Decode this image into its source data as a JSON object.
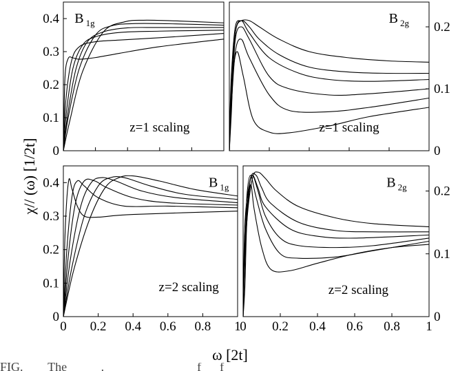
{
  "figure": {
    "ylabel": "χ// (ω) [1/2t]",
    "xlabel": "ω [2t]",
    "caption_fragment": "FIG.        The           .                              f      f"
  },
  "chart_data": [
    {
      "type": "line",
      "panel": "top-left",
      "label_main": "B",
      "label_sub": "1g",
      "annotation": "z=1 scaling",
      "y_axis_side": "left",
      "xlim": [
        0,
        1
      ],
      "ylim": [
        0,
        0.45
      ],
      "xticks": [],
      "yticks": [
        0,
        0.1,
        0.2,
        0.3,
        0.4
      ],
      "ytick_labels": [
        "0",
        "0.1",
        "0.2",
        "0.3",
        "0.4"
      ],
      "series": [
        {
          "x": [
            0,
            0.01,
            0.03,
            0.06,
            0.1,
            0.2,
            0.35,
            0.6,
            1.0
          ],
          "y": [
            0,
            0.22,
            0.279,
            0.281,
            0.277,
            0.282,
            0.295,
            0.315,
            0.338
          ]
        },
        {
          "x": [
            0,
            0.015,
            0.05,
            0.1,
            0.2,
            0.35,
            0.6,
            1.0
          ],
          "y": [
            0,
            0.15,
            0.27,
            0.315,
            0.33,
            0.335,
            0.342,
            0.355
          ]
        },
        {
          "x": [
            0,
            0.02,
            0.06,
            0.12,
            0.2,
            0.35,
            0.6,
            1.0
          ],
          "y": [
            0,
            0.12,
            0.25,
            0.32,
            0.345,
            0.358,
            0.362,
            0.365
          ]
        },
        {
          "x": [
            0,
            0.03,
            0.08,
            0.15,
            0.25,
            0.4,
            0.6,
            1.0
          ],
          "y": [
            0,
            0.12,
            0.25,
            0.33,
            0.36,
            0.372,
            0.373,
            0.373
          ]
        },
        {
          "x": [
            0,
            0.03,
            0.1,
            0.2,
            0.3,
            0.45,
            0.7,
            1.0
          ],
          "y": [
            0,
            0.1,
            0.25,
            0.35,
            0.378,
            0.385,
            0.384,
            0.38
          ]
        },
        {
          "x": [
            0,
            0.04,
            0.12,
            0.25,
            0.38,
            0.5,
            0.7,
            1.0
          ],
          "y": [
            0,
            0.09,
            0.24,
            0.36,
            0.39,
            0.395,
            0.393,
            0.387
          ]
        }
      ]
    },
    {
      "type": "line",
      "panel": "top-right",
      "label_main": "B",
      "label_sub": "2g",
      "annotation": "z=1 scaling",
      "y_axis_side": "right",
      "xlim": [
        0,
        1
      ],
      "ylim": [
        0,
        0.24
      ],
      "xticks": [],
      "yticks": [
        0,
        0.1,
        0.2
      ],
      "ytick_labels": [
        "0",
        "0.1",
        "0.2"
      ],
      "series": [
        {
          "x": [
            0,
            0.01,
            0.03,
            0.06,
            0.1,
            0.15,
            0.25,
            0.4,
            0.6,
            0.8,
            1.0
          ],
          "y": [
            0.02,
            0.12,
            0.2,
            0.21,
            0.21,
            0.2,
            0.18,
            0.16,
            0.15,
            0.145,
            0.143
          ]
        },
        {
          "x": [
            0,
            0.01,
            0.03,
            0.06,
            0.1,
            0.15,
            0.25,
            0.4,
            0.6,
            0.8,
            1.0
          ],
          "y": [
            0,
            0.1,
            0.19,
            0.21,
            0.2,
            0.18,
            0.155,
            0.135,
            0.127,
            0.125,
            0.125
          ]
        },
        {
          "x": [
            0,
            0.01,
            0.03,
            0.06,
            0.1,
            0.2,
            0.35,
            0.5,
            0.7,
            1.0
          ],
          "y": [
            0,
            0.09,
            0.19,
            0.21,
            0.19,
            0.15,
            0.125,
            0.115,
            0.112,
            0.115
          ]
        },
        {
          "x": [
            0,
            0.01,
            0.03,
            0.06,
            0.1,
            0.2,
            0.3,
            0.5,
            0.7,
            1.0
          ],
          "y": [
            0,
            0.08,
            0.18,
            0.2,
            0.18,
            0.12,
            0.1,
            0.09,
            0.092,
            0.1
          ]
        },
        {
          "x": [
            0,
            0.01,
            0.03,
            0.06,
            0.1,
            0.2,
            0.3,
            0.5,
            0.7,
            1.0
          ],
          "y": [
            0,
            0.07,
            0.16,
            0.18,
            0.15,
            0.09,
            0.065,
            0.063,
            0.07,
            0.085
          ]
        },
        {
          "x": [
            0,
            0.01,
            0.02,
            0.04,
            0.07,
            0.12,
            0.2,
            0.3,
            0.5,
            0.7,
            1.0
          ],
          "y": [
            0,
            0.06,
            0.13,
            0.16,
            0.12,
            0.05,
            0.03,
            0.029,
            0.04,
            0.055,
            0.07
          ]
        }
      ]
    },
    {
      "type": "line",
      "panel": "bottom-left",
      "label_main": "B",
      "label_sub": "1g",
      "annotation": "z=2 scaling",
      "y_axis_side": "left",
      "xlim": [
        0,
        1
      ],
      "ylim": [
        0,
        0.45
      ],
      "xticks": [
        0,
        0.2,
        0.4,
        0.6,
        0.8,
        1
      ],
      "xtick_labels": [
        "0",
        "0.2",
        "0.4",
        "0.6",
        "0.8",
        "1"
      ],
      "yticks": [
        0,
        0.1,
        0.2,
        0.3,
        0.4
      ],
      "ytick_labels": [
        "0",
        "0.1",
        "0.2",
        "0.3",
        "0.4"
      ],
      "series": [
        {
          "x": [
            0,
            0.01,
            0.03,
            0.05,
            0.08,
            0.12,
            0.2,
            0.4,
            1.0
          ],
          "y": [
            0,
            0.25,
            0.405,
            0.38,
            0.33,
            0.3,
            0.297,
            0.305,
            0.315
          ]
        },
        {
          "x": [
            0,
            0.02,
            0.05,
            0.08,
            0.12,
            0.2,
            0.35,
            0.6,
            1.0
          ],
          "y": [
            0,
            0.2,
            0.36,
            0.405,
            0.39,
            0.355,
            0.33,
            0.33,
            0.325
          ]
        },
        {
          "x": [
            0,
            0.03,
            0.07,
            0.12,
            0.18,
            0.25,
            0.4,
            0.6,
            1.0
          ],
          "y": [
            0,
            0.19,
            0.34,
            0.405,
            0.405,
            0.385,
            0.355,
            0.34,
            0.333
          ]
        },
        {
          "x": [
            0,
            0.04,
            0.1,
            0.16,
            0.22,
            0.3,
            0.45,
            0.65,
            1.0
          ],
          "y": [
            0,
            0.17,
            0.33,
            0.4,
            0.415,
            0.405,
            0.375,
            0.355,
            0.34
          ]
        },
        {
          "x": [
            0,
            0.05,
            0.12,
            0.2,
            0.27,
            0.35,
            0.5,
            0.7,
            1.0
          ],
          "y": [
            0,
            0.15,
            0.3,
            0.39,
            0.415,
            0.415,
            0.39,
            0.365,
            0.35
          ]
        },
        {
          "x": [
            0,
            0.06,
            0.15,
            0.24,
            0.32,
            0.4,
            0.55,
            0.75,
            1.0
          ],
          "y": [
            0,
            0.14,
            0.29,
            0.385,
            0.415,
            0.42,
            0.405,
            0.38,
            0.36
          ]
        }
      ]
    },
    {
      "type": "line",
      "panel": "bottom-right",
      "label_main": "B",
      "label_sub": "2g",
      "annotation": "z=2 scaling",
      "y_axis_side": "right",
      "xlim": [
        0,
        1
      ],
      "ylim": [
        0,
        0.24
      ],
      "xticks": [
        0,
        0.2,
        0.4,
        0.6,
        0.8,
        1
      ],
      "xtick_labels": [
        "0",
        "0.2",
        "0.4",
        "0.6",
        "0.8",
        "1"
      ],
      "yticks": [
        0,
        0.1,
        0.2
      ],
      "ytick_labels": [
        "0",
        "0.1",
        "0.2"
      ],
      "series": [
        {
          "x": [
            0,
            0.02,
            0.05,
            0.08,
            0.12,
            0.18,
            0.3,
            0.5,
            0.7,
            1.0
          ],
          "y": [
            0.02,
            0.15,
            0.22,
            0.23,
            0.22,
            0.2,
            0.175,
            0.157,
            0.148,
            0.143
          ]
        },
        {
          "x": [
            0,
            0.01,
            0.04,
            0.07,
            0.1,
            0.15,
            0.3,
            0.5,
            0.7,
            1.0
          ],
          "y": [
            0,
            0.15,
            0.22,
            0.225,
            0.205,
            0.18,
            0.15,
            0.137,
            0.135,
            0.135
          ]
        },
        {
          "x": [
            0,
            0.01,
            0.03,
            0.05,
            0.08,
            0.12,
            0.25,
            0.4,
            0.6,
            1.0
          ],
          "y": [
            0,
            0.12,
            0.2,
            0.225,
            0.205,
            0.175,
            0.14,
            0.128,
            0.125,
            0.13
          ]
        },
        {
          "x": [
            0,
            0.01,
            0.03,
            0.05,
            0.08,
            0.12,
            0.2,
            0.3,
            0.5,
            0.7,
            1.0
          ],
          "y": [
            0,
            0.1,
            0.2,
            0.225,
            0.2,
            0.16,
            0.125,
            0.113,
            0.11,
            0.113,
            0.125
          ]
        },
        {
          "x": [
            0,
            0.01,
            0.02,
            0.04,
            0.07,
            0.12,
            0.2,
            0.3,
            0.5,
            0.7,
            1.0
          ],
          "y": [
            0,
            0.1,
            0.19,
            0.225,
            0.19,
            0.14,
            0.1,
            0.093,
            0.095,
            0.105,
            0.12
          ]
        },
        {
          "x": [
            0,
            0.01,
            0.02,
            0.04,
            0.06,
            0.1,
            0.15,
            0.25,
            0.4,
            0.6,
            0.8,
            1.0
          ],
          "y": [
            0,
            0.05,
            0.15,
            0.21,
            0.17,
            0.11,
            0.075,
            0.073,
            0.085,
            0.1,
            0.11,
            0.115
          ]
        }
      ]
    }
  ]
}
